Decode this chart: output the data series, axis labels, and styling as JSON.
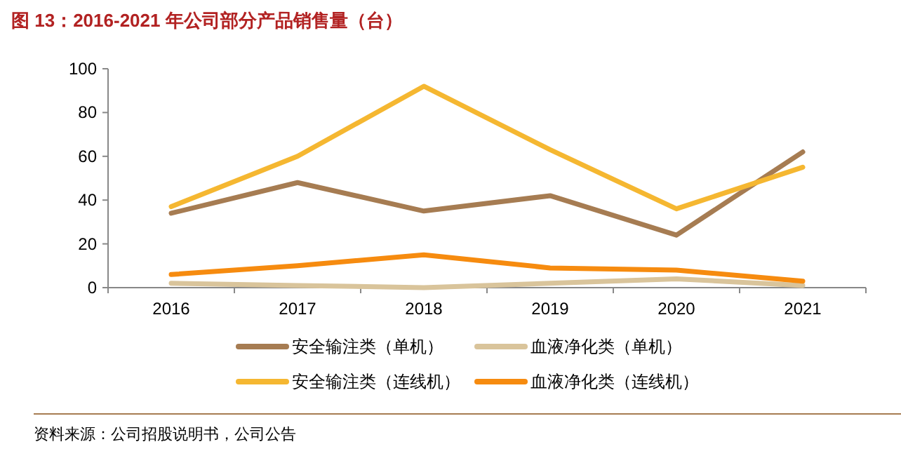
{
  "chart_data": {
    "type": "line",
    "title": "图 13：2016-2021 年公司部分产品销售量（台）",
    "categories": [
      "2016",
      "2017",
      "2018",
      "2019",
      "2020",
      "2021"
    ],
    "series": [
      {
        "name": "安全输注类（单机）",
        "color": "#a67c52",
        "values": [
          34,
          48,
          35,
          42,
          24,
          62
        ]
      },
      {
        "name": "血液净化类（单机）",
        "color": "#d9c49b",
        "values": [
          2,
          1,
          0,
          2,
          4,
          1
        ]
      },
      {
        "name": "安全输注类（连线机）",
        "color": "#f5b731",
        "values": [
          37,
          60,
          92,
          63,
          36,
          55
        ]
      },
      {
        "name": "血液净化类（连线机）",
        "color": "#f68b0f",
        "values": [
          6,
          10,
          15,
          9,
          8,
          3
        ]
      }
    ],
    "ylim": [
      0,
      100
    ],
    "yticks": [
      0,
      20,
      40,
      60,
      80,
      100
    ],
    "grid": false,
    "legend": "bottom",
    "line_style": "solid",
    "marker": "none",
    "annotations": [
      "资料来源：公司招股说明书，公司公告"
    ]
  }
}
